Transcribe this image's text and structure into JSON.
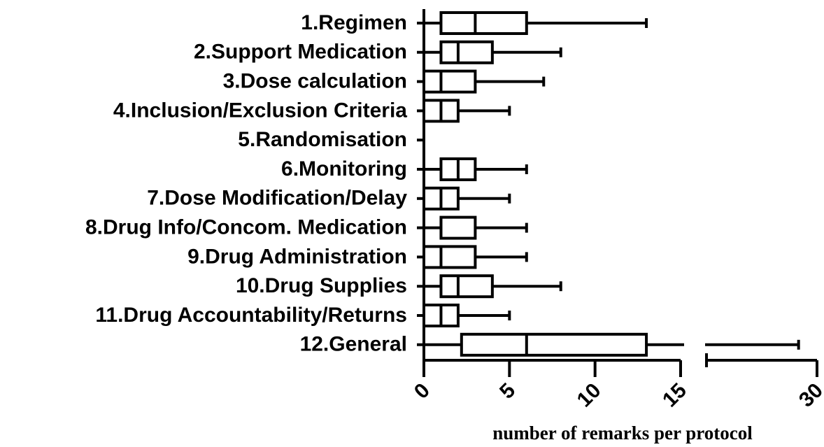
{
  "chart_data": {
    "type": "box",
    "x_label": "number of remarks per protocol",
    "categories": [
      "1.Regimen",
      "2.Support Medication",
      "3.Dose calculation",
      "4.Inclusion/Exclusion Criteria",
      "5.Randomisation",
      "6.Monitoring",
      "7.Dose Modification/Delay",
      "8.Drug Info/Concom. Medication",
      "9.Drug Administration",
      "10.Drug Supplies",
      "11.Drug Accountability/Returns",
      "12.General"
    ],
    "min": [
      0,
      0,
      0,
      0,
      0,
      0,
      0,
      0,
      0,
      0,
      0,
      0
    ],
    "q1": [
      1,
      1,
      0,
      0,
      0,
      1,
      0,
      1,
      0,
      1,
      0,
      2.2
    ],
    "median": [
      3,
      2,
      1,
      1,
      0,
      2,
      1,
      1,
      1,
      2,
      1,
      6
    ],
    "q3": [
      6,
      4,
      3,
      2,
      0,
      3,
      2,
      3,
      3,
      4,
      2,
      13
    ],
    "max": [
      13,
      8,
      7,
      5,
      0,
      6,
      5,
      6,
      6,
      8,
      5,
      29
    ],
    "color": "#000000",
    "xlim": [
      0,
      30
    ],
    "axis_break": [
      15,
      24
    ],
    "xticks": [
      0,
      5,
      10,
      15,
      30
    ]
  }
}
